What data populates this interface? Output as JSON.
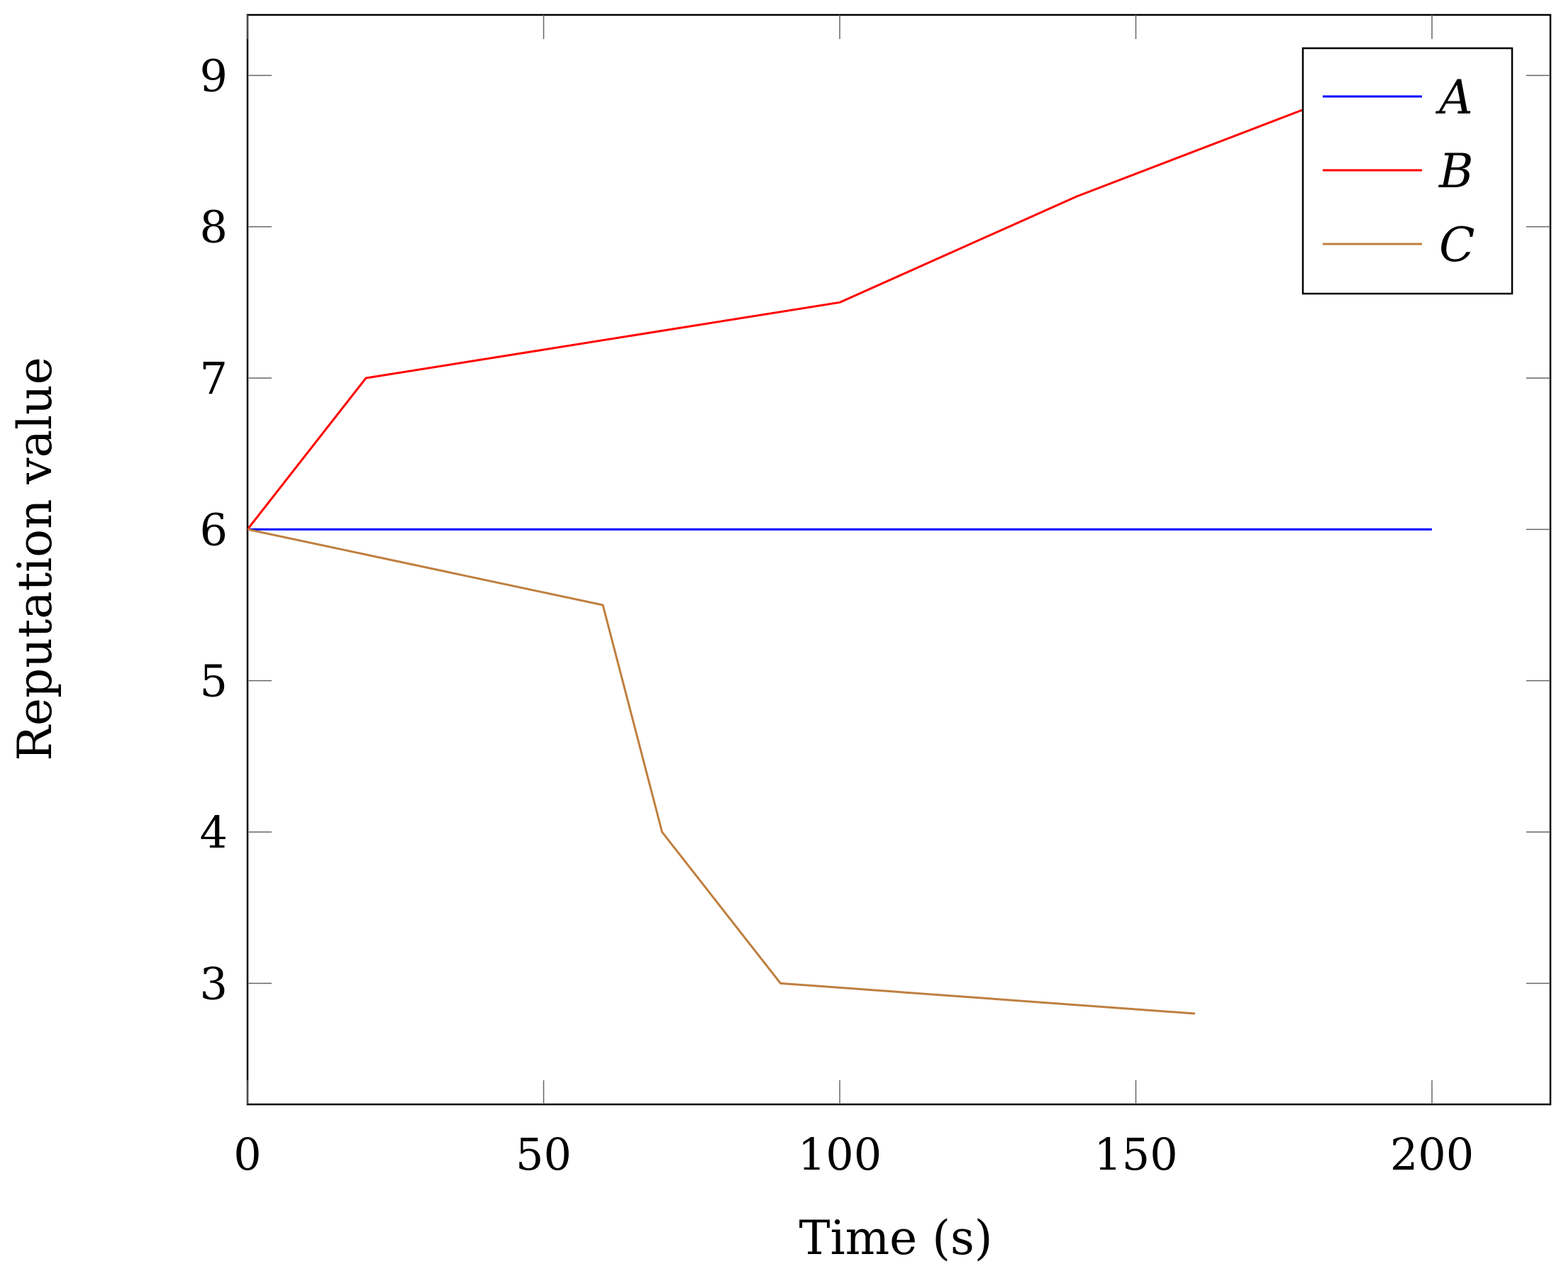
{
  "chart_data": {
    "type": "line",
    "title": "",
    "xlabel": "Time (s)",
    "ylabel": "Reputation value",
    "xlim": [
      0,
      220
    ],
    "ylim": [
      2.2,
      9.4
    ],
    "xticks": [
      0,
      50,
      100,
      150,
      200
    ],
    "yticks": [
      3,
      4,
      5,
      6,
      7,
      8,
      9
    ],
    "grid": false,
    "legend_position": "top-right",
    "series": [
      {
        "name": "A",
        "color": "#0000ff",
        "x": [
          0,
          200
        ],
        "y": [
          6,
          6
        ]
      },
      {
        "name": "B",
        "color": "#ff0000",
        "x": [
          0,
          20,
          100,
          140,
          180
        ],
        "y": [
          6,
          7,
          7.5,
          8.2,
          8.8
        ]
      },
      {
        "name": "C",
        "color": "#bf7f3f",
        "x": [
          0,
          60,
          70,
          90,
          160
        ],
        "y": [
          6,
          5.5,
          4,
          3,
          2.8
        ]
      }
    ]
  }
}
